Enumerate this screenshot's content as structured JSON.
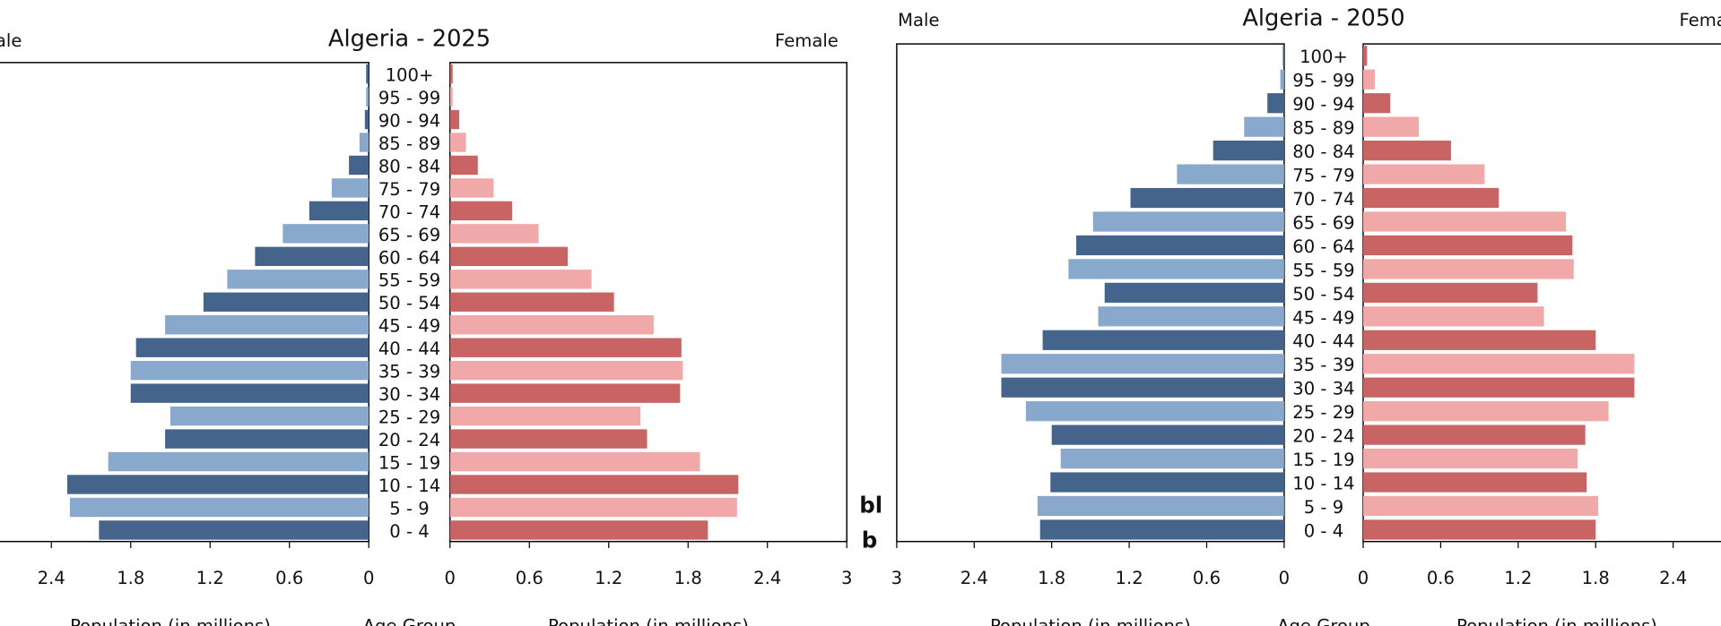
{
  "chart_data": [
    {
      "type": "pyramid",
      "title": "Algeria - 2025",
      "categories": [
        "100+",
        "95 - 99",
        "90 - 94",
        "85 - 89",
        "80 - 84",
        "75 - 79",
        "70 - 74",
        "65 - 69",
        "60 - 64",
        "55 - 59",
        "50 - 54",
        "45 - 49",
        "40 - 44",
        "35 - 39",
        "30 - 34",
        "25 - 29",
        "20 - 24",
        "15 - 19",
        "10 - 14",
        "5 - 9",
        "0 - 4"
      ],
      "series": [
        {
          "name": "Male",
          "colors": [
            "#44648c",
            "#88a8cc"
          ],
          "values": [
            0.02,
            0.02,
            0.03,
            0.07,
            0.15,
            0.28,
            0.45,
            0.65,
            0.86,
            1.07,
            1.25,
            1.54,
            1.76,
            1.8,
            1.8,
            1.5,
            1.54,
            1.97,
            2.28,
            2.26,
            2.04
          ]
        },
        {
          "name": "Female",
          "colors": [
            "#c86464",
            "#f0a8a8"
          ],
          "values": [
            0.02,
            0.02,
            0.07,
            0.12,
            0.21,
            0.33,
            0.47,
            0.67,
            0.89,
            1.07,
            1.24,
            1.54,
            1.75,
            1.76,
            1.74,
            1.44,
            1.49,
            1.89,
            2.18,
            2.17,
            1.95
          ]
        }
      ],
      "xlim": [
        0,
        3
      ],
      "xticks": [
        0,
        0.6,
        1.2,
        1.8,
        2.4,
        3
      ],
      "xlabels": [
        "Population (in millions)",
        "Age Group",
        "Population (in millions)"
      ]
    },
    {
      "type": "pyramid",
      "title": "Algeria - 2050",
      "categories": [
        "100+",
        "95 - 99",
        "90 - 94",
        "85 - 89",
        "80 - 84",
        "75 - 79",
        "70 - 74",
        "65 - 69",
        "60 - 64",
        "55 - 59",
        "50 - 54",
        "45 - 49",
        "40 - 44",
        "35 - 39",
        "30 - 34",
        "25 - 29",
        "20 - 24",
        "15 - 19",
        "10 - 14",
        "5 - 9",
        "0 - 4"
      ],
      "series": [
        {
          "name": "Male",
          "colors": [
            "#44648c",
            "#88a8cc"
          ],
          "values": [
            0.01,
            0.03,
            0.13,
            0.31,
            0.55,
            0.83,
            1.19,
            1.48,
            1.61,
            1.67,
            1.39,
            1.44,
            1.87,
            2.19,
            2.19,
            2.0,
            1.8,
            1.73,
            1.81,
            1.91,
            1.89
          ]
        },
        {
          "name": "Female",
          "colors": [
            "#c86464",
            "#f0a8a8"
          ],
          "values": [
            0.03,
            0.09,
            0.21,
            0.43,
            0.68,
            0.94,
            1.05,
            1.57,
            1.62,
            1.63,
            1.35,
            1.4,
            1.8,
            2.1,
            2.1,
            1.9,
            1.72,
            1.66,
            1.73,
            1.82,
            1.8
          ]
        }
      ],
      "xlim": [
        0,
        3
      ],
      "xticks": [
        0,
        0.6,
        1.2,
        1.8,
        2.4,
        3
      ],
      "xlabels": [
        "Population (in millions)",
        "Age Group",
        "Population (in millions)"
      ]
    }
  ],
  "fragments": [
    "bl",
    "b"
  ]
}
